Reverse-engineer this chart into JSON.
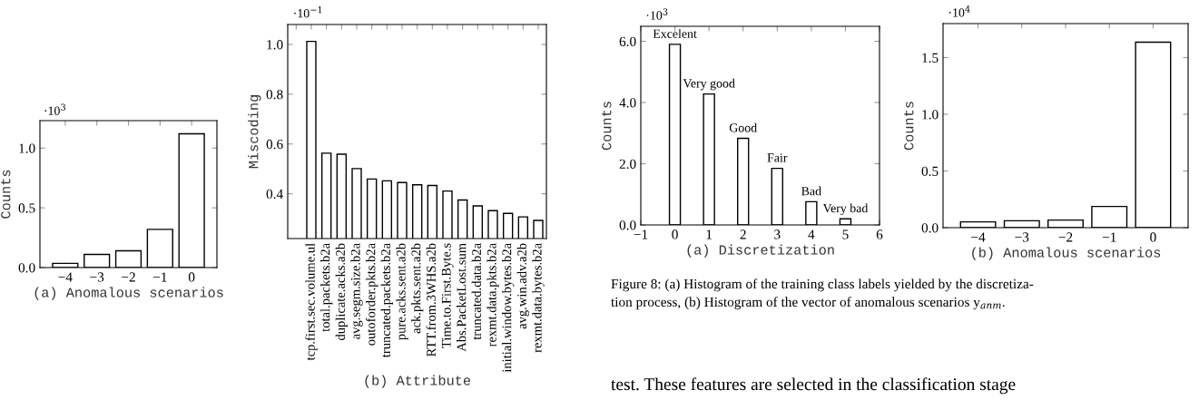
{
  "chart_data": [
    {
      "type": "bar",
      "x": [
        -4,
        -3,
        -2,
        -1,
        0
      ],
      "values": [
        0.035,
        0.11,
        0.14,
        0.32,
        1.12
      ],
      "color": "#ffffff",
      "xlim": [
        -4.8,
        0.8
      ],
      "xticks": [
        {
          "value": -4,
          "label": "−4"
        },
        {
          "value": -3,
          "label": "−3"
        },
        {
          "value": -2,
          "label": "−2"
        },
        {
          "value": -1,
          "label": "−1"
        },
        0
      ],
      "ylim": [
        0,
        1.23
      ],
      "yticks": [
        {
          "value": 0,
          "label": "0.0"
        },
        0.5,
        {
          "value": 1,
          "label": "1.0"
        }
      ],
      "ylabel": "Counts",
      "xlabel": "(a) Anomalous scenarios",
      "annotations": [
        "·10$^{3}$"
      ],
      "grid": false
    },
    {
      "type": "bar",
      "categories": [
        null,
        "tcp.first.sec.volume.ul",
        "total.packets.b2a",
        "duplicate.acks.a2b",
        "avg.segm.size.b2a",
        "outoforder.pkts.b2a",
        "truncated.packets.b2a",
        "pure.acks.sent.a2b",
        "ack.pkts.sent.a2b",
        "RTT.from.3WHS.a2b",
        "Time.to.First.Byte.s",
        "Abs.PacketLost.sum",
        "truncated.data.b2a",
        "rexmt.data.pkts.b2a",
        "initial.window.bytes.b2a",
        "avg.win.adv.a2b",
        "rexmt.data.bytes.b2a"
      ],
      "values": [
        null,
        1.012,
        0.563,
        0.559,
        0.501,
        0.459,
        0.452,
        0.445,
        0.436,
        0.433,
        0.411,
        0.375,
        0.351,
        0.332,
        0.321,
        0.307,
        0.293
      ],
      "color": "#ffffff",
      "ylim": [
        0.22,
        1.08
      ],
      "yticks": [
        0.4,
        0.6,
        0.8,
        {
          "value": 1,
          "label": "1.0"
        }
      ],
      "ylabel": "Miscoding",
      "xlabel": "(b) Attribute",
      "annotations": [
        "·10$^{−1}$"
      ],
      "grid": false
    },
    {
      "type": "bar",
      "x": [
        0,
        1,
        2,
        3,
        4,
        5
      ],
      "values": [
        5.9,
        4.28,
        2.83,
        1.85,
        0.76,
        0.2
      ],
      "color": "#ffffff",
      "xlim": [
        -1,
        6
      ],
      "xticks": [
        {
          "value": -1,
          "label": "−1"
        },
        0,
        1,
        2,
        3,
        4,
        5,
        6
      ],
      "ylim": [
        0,
        6.49
      ],
      "yticks": [
        {
          "value": 0,
          "label": "0.0"
        },
        {
          "value": 2,
          "label": "2.0"
        },
        {
          "value": 4,
          "label": "4.0"
        },
        {
          "value": 6,
          "label": "6.0"
        }
      ],
      "ylabel": "Counts",
      "xlabel": "(a) Discretization",
      "annotations": [
        "·10$^{3}$",
        "Figure 8: (a) Histogram of the training class labels yielded by the discretiza-",
        "tion process, (b) Histogram of the vector of anomalous scenarios y$_{anm}$.",
        "test. These features are selected in the classification stage",
        {
          "text": "Excelent",
          "x": 0,
          "y": 5.9
        },
        {
          "text": "Very good",
          "x": 1,
          "y": 4.28
        },
        {
          "text": "Good",
          "x": 2,
          "y": 2.83
        },
        {
          "text": "Fair",
          "x": 3,
          "y": 1.85
        },
        {
          "text": "Bad",
          "x": 4,
          "y": 0.76
        },
        {
          "text": "Very bad",
          "x": 5,
          "y": 0.2
        }
      ],
      "grid": false
    },
    {
      "type": "bar",
      "x": [
        -4,
        -3,
        -2,
        -1,
        0
      ],
      "values": [
        0.051,
        0.061,
        0.067,
        0.187,
        1.636
      ],
      "color": "#ffffff",
      "xlim": [
        -4.8,
        0.8
      ],
      "xticks": [
        {
          "value": -4,
          "label": "−4"
        },
        {
          "value": -3,
          "label": "−3"
        },
        {
          "value": -2,
          "label": "−2"
        },
        {
          "value": -1,
          "label": "−1"
        },
        0
      ],
      "ylim": [
        0,
        1.8
      ],
      "yticks": [
        {
          "value": 0,
          "label": "0.0"
        },
        0.5,
        {
          "value": 1,
          "label": "1.0"
        },
        1.5
      ],
      "ylabel": "Counts",
      "xlabel": "(b) Anomalous scenarios",
      "annotations": [
        "·10$^{4}$"
      ],
      "grid": false
    }
  ]
}
